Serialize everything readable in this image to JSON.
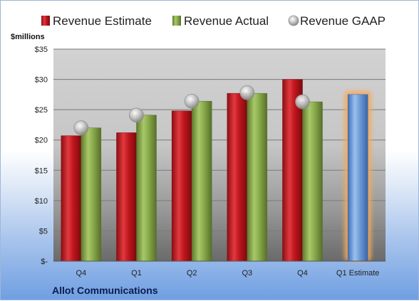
{
  "chart_data": {
    "type": "bar",
    "categories": [
      "Q4",
      "Q1",
      "Q2",
      "Q3",
      "Q4",
      "Q1 Estimate"
    ],
    "series": [
      {
        "name": "Revenue Estimate",
        "type": "bar",
        "color": "#c0161d",
        "values": [
          20.7,
          21.2,
          24.8,
          27.7,
          30.0,
          27.5
        ]
      },
      {
        "name": "Revenue Actual",
        "type": "bar",
        "color": "#8aab4c",
        "values": [
          22.0,
          24.1,
          26.4,
          27.7,
          26.3,
          null
        ]
      },
      {
        "name": "Revenue GAAP",
        "type": "marker",
        "color": "#b8b8b8",
        "values": [
          22.0,
          24.1,
          26.4,
          27.8,
          26.3,
          null
        ]
      }
    ],
    "estimate_highlight": {
      "category": "Q1 Estimate",
      "color": "#6d9bd8",
      "glow_color": "#f5a95a"
    },
    "yticks": [
      "$-",
      "$5",
      "$10",
      "$15",
      "$20",
      "$25",
      "$30",
      "$35"
    ],
    "ylim": [
      0,
      35
    ],
    "yunit": "$millions",
    "grid": true,
    "legend": "top"
  },
  "footer": {
    "company": "Allot Communications"
  }
}
